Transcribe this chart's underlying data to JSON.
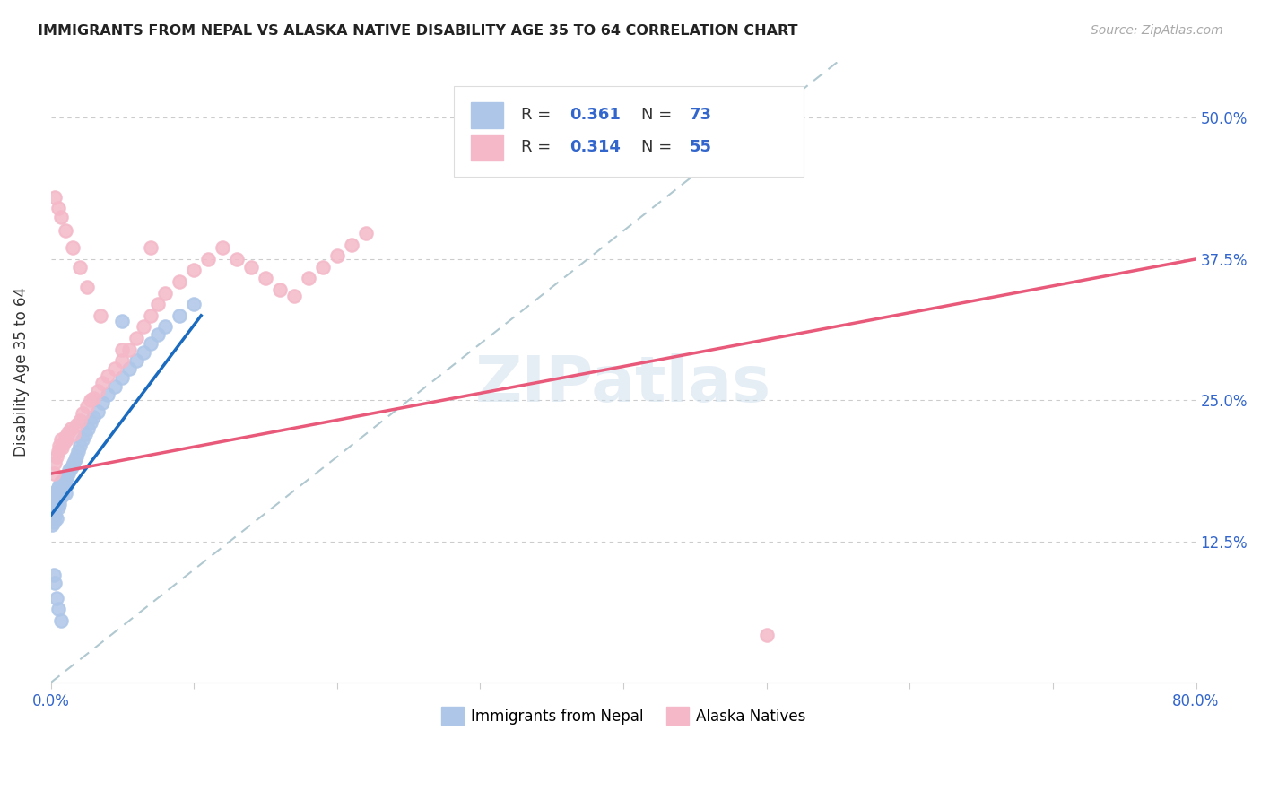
{
  "title": "IMMIGRANTS FROM NEPAL VS ALASKA NATIVE DISABILITY AGE 35 TO 64 CORRELATION CHART",
  "source": "Source: ZipAtlas.com",
  "ylabel": "Disability Age 35 to 64",
  "x_min": 0.0,
  "x_max": 0.8,
  "y_min": 0.0,
  "y_max": 0.55,
  "y_ticks": [
    0.0,
    0.125,
    0.25,
    0.375,
    0.5
  ],
  "nepal_r": 0.361,
  "nepal_n": 73,
  "alaska_r": 0.314,
  "alaska_n": 55,
  "nepal_color": "#aec6e8",
  "alaska_color": "#f4b8c8",
  "nepal_line_color": "#1a6bbf",
  "alaska_line_color": "#e8597a",
  "diagonal_color": "#b0c8d0",
  "watermark": "ZIPatlas",
  "legend_label_nepal": "Immigrants from Nepal",
  "legend_label_alaska": "Alaska Natives",
  "nepal_points_x": [
    0.001,
    0.001,
    0.001,
    0.001,
    0.002,
    0.002,
    0.002,
    0.002,
    0.002,
    0.002,
    0.003,
    0.003,
    0.003,
    0.003,
    0.003,
    0.004,
    0.004,
    0.004,
    0.004,
    0.005,
    0.005,
    0.005,
    0.005,
    0.006,
    0.006,
    0.006,
    0.006,
    0.007,
    0.007,
    0.007,
    0.008,
    0.008,
    0.008,
    0.009,
    0.009,
    0.01,
    0.01,
    0.01,
    0.011,
    0.011,
    0.012,
    0.013,
    0.014,
    0.015,
    0.016,
    0.017,
    0.018,
    0.019,
    0.02,
    0.022,
    0.024,
    0.026,
    0.028,
    0.03,
    0.033,
    0.036,
    0.04,
    0.045,
    0.05,
    0.055,
    0.06,
    0.065,
    0.07,
    0.075,
    0.08,
    0.09,
    0.1,
    0.002,
    0.003,
    0.004,
    0.005,
    0.007,
    0.05
  ],
  "nepal_points_y": [
    0.145,
    0.148,
    0.15,
    0.14,
    0.152,
    0.155,
    0.158,
    0.142,
    0.148,
    0.151,
    0.16,
    0.155,
    0.162,
    0.148,
    0.165,
    0.158,
    0.163,
    0.17,
    0.145,
    0.165,
    0.17,
    0.155,
    0.172,
    0.168,
    0.162,
    0.175,
    0.158,
    0.172,
    0.165,
    0.178,
    0.17,
    0.175,
    0.165,
    0.178,
    0.172,
    0.18,
    0.175,
    0.168,
    0.182,
    0.175,
    0.185,
    0.188,
    0.19,
    0.192,
    0.195,
    0.198,
    0.2,
    0.205,
    0.21,
    0.215,
    0.22,
    0.225,
    0.23,
    0.235,
    0.24,
    0.248,
    0.255,
    0.262,
    0.27,
    0.278,
    0.285,
    0.292,
    0.3,
    0.308,
    0.315,
    0.325,
    0.335,
    0.095,
    0.088,
    0.075,
    0.065,
    0.055,
    0.32
  ],
  "alaska_points_x": [
    0.002,
    0.003,
    0.004,
    0.005,
    0.006,
    0.007,
    0.008,
    0.009,
    0.01,
    0.011,
    0.012,
    0.014,
    0.016,
    0.018,
    0.02,
    0.022,
    0.025,
    0.028,
    0.03,
    0.033,
    0.036,
    0.04,
    0.045,
    0.05,
    0.055,
    0.06,
    0.065,
    0.07,
    0.075,
    0.08,
    0.09,
    0.1,
    0.11,
    0.12,
    0.13,
    0.14,
    0.15,
    0.16,
    0.17,
    0.18,
    0.19,
    0.2,
    0.21,
    0.22,
    0.5,
    0.003,
    0.005,
    0.007,
    0.01,
    0.015,
    0.02,
    0.025,
    0.035,
    0.05,
    0.07
  ],
  "alaska_points_y": [
    0.185,
    0.195,
    0.2,
    0.205,
    0.21,
    0.215,
    0.208,
    0.212,
    0.218,
    0.215,
    0.222,
    0.225,
    0.22,
    0.228,
    0.232,
    0.238,
    0.245,
    0.25,
    0.252,
    0.258,
    0.265,
    0.272,
    0.278,
    0.285,
    0.295,
    0.305,
    0.315,
    0.325,
    0.335,
    0.345,
    0.355,
    0.365,
    0.375,
    0.385,
    0.375,
    0.368,
    0.358,
    0.348,
    0.342,
    0.358,
    0.368,
    0.378,
    0.388,
    0.398,
    0.042,
    0.43,
    0.42,
    0.412,
    0.4,
    0.385,
    0.368,
    0.35,
    0.325,
    0.295,
    0.385
  ]
}
